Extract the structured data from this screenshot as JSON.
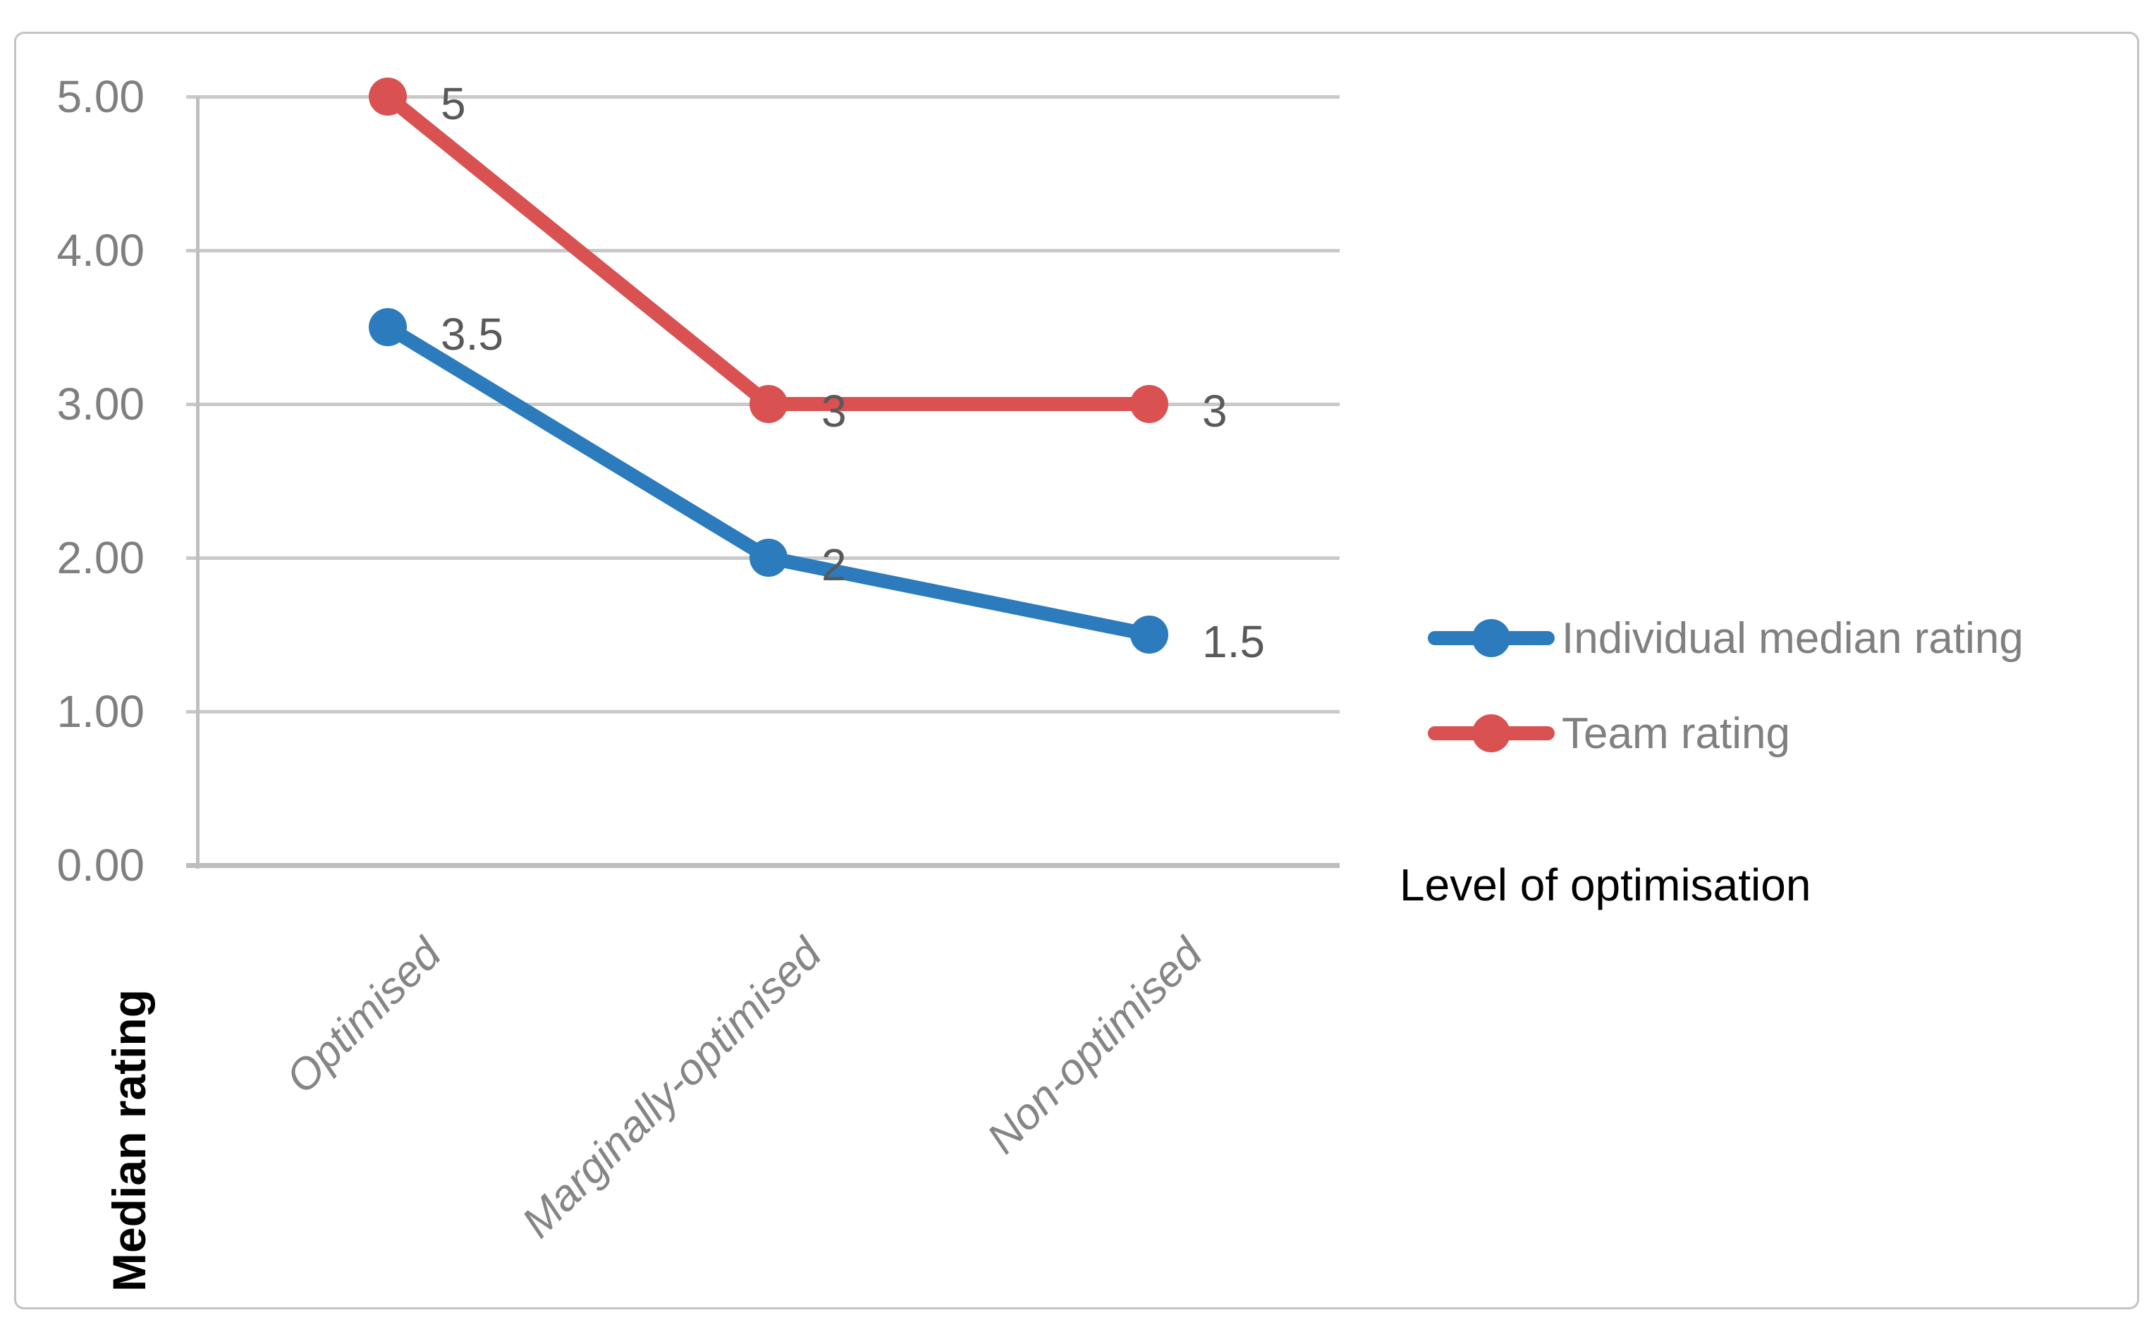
{
  "chart_data": {
    "type": "line",
    "categories": [
      "Optimised",
      "Marginally-optimised",
      "Non-optimised"
    ],
    "series": [
      {
        "name": "Individual median rating",
        "values": [
          3.5,
          2,
          1.5
        ],
        "labels": [
          "3.5",
          "2",
          "1.5"
        ],
        "color": "#2b7bbd"
      },
      {
        "name": "Team rating",
        "values": [
          5,
          3,
          3
        ],
        "labels": [
          "5",
          "3",
          "3"
        ],
        "color": "#d95151"
      }
    ],
    "xlabel": "Level of optimisation",
    "ylabel": "Median rating",
    "ylim": [
      0,
      5
    ],
    "yticks": [
      "0.00",
      "1.00",
      "2.00",
      "3.00",
      "4.00",
      "5.00"
    ],
    "grid": true,
    "legend_position": "right"
  },
  "colors": {
    "gridline": "#c9c9c9",
    "axis_line": "#bfbfbf",
    "tick_text": "#7f7f7f",
    "category_text": "#858585",
    "data_label_text": "#595959",
    "legend_text": "#808080",
    "axis_title_text": "#000000",
    "series_blue": "#2b7bbd",
    "series_red": "#d95151",
    "background": "#ffffff",
    "border": "#c3c3c3"
  }
}
